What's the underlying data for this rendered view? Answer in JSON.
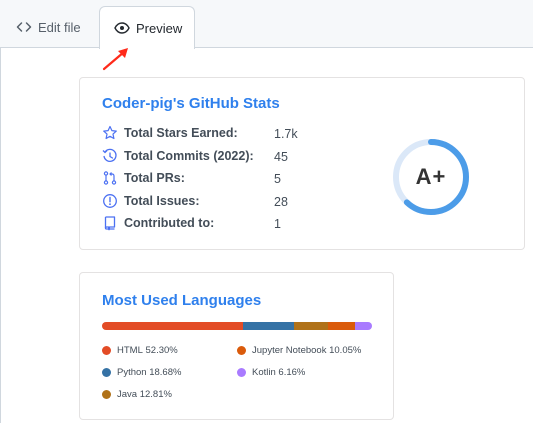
{
  "tabs": {
    "edit_label": "Edit file",
    "preview_label": "Preview"
  },
  "stats": {
    "title": "Coder-pig's GitHub Stats",
    "rows": [
      {
        "label": "Total Stars Earned:",
        "value": "1.7k",
        "icon": "star-icon"
      },
      {
        "label": "Total Commits (2022):",
        "value": "45",
        "icon": "history-icon"
      },
      {
        "label": "Total PRs:",
        "value": "5",
        "icon": "pull-request-icon"
      },
      {
        "label": "Total Issues:",
        "value": "28",
        "icon": "issue-icon"
      },
      {
        "label": "Contributed to:",
        "value": "1",
        "icon": "repo-icon"
      }
    ],
    "rank": "A+",
    "rank_ring_fraction": 0.62
  },
  "languages": {
    "title": "Most Used Languages",
    "items": [
      {
        "name": "HTML",
        "percent": "52.30%",
        "value": 52.3,
        "color": "#e34c26"
      },
      {
        "name": "Python",
        "percent": "18.68%",
        "value": 18.68,
        "color": "#3572a5"
      },
      {
        "name": "Java",
        "percent": "12.81%",
        "value": 12.81,
        "color": "#b07219"
      },
      {
        "name": "Jupyter Notebook",
        "percent": "10.05%",
        "value": 10.05,
        "color": "#da5b0b"
      },
      {
        "name": "Kotlin",
        "percent": "6.16%",
        "value": 6.16,
        "color": "#a97bff"
      }
    ]
  },
  "colors": {
    "title": "#2f80ed",
    "icon": "#4c71f2",
    "ring": "#4c9ce8",
    "ring_track": "#dbe8f8",
    "arrow": "#ff2a1a"
  }
}
